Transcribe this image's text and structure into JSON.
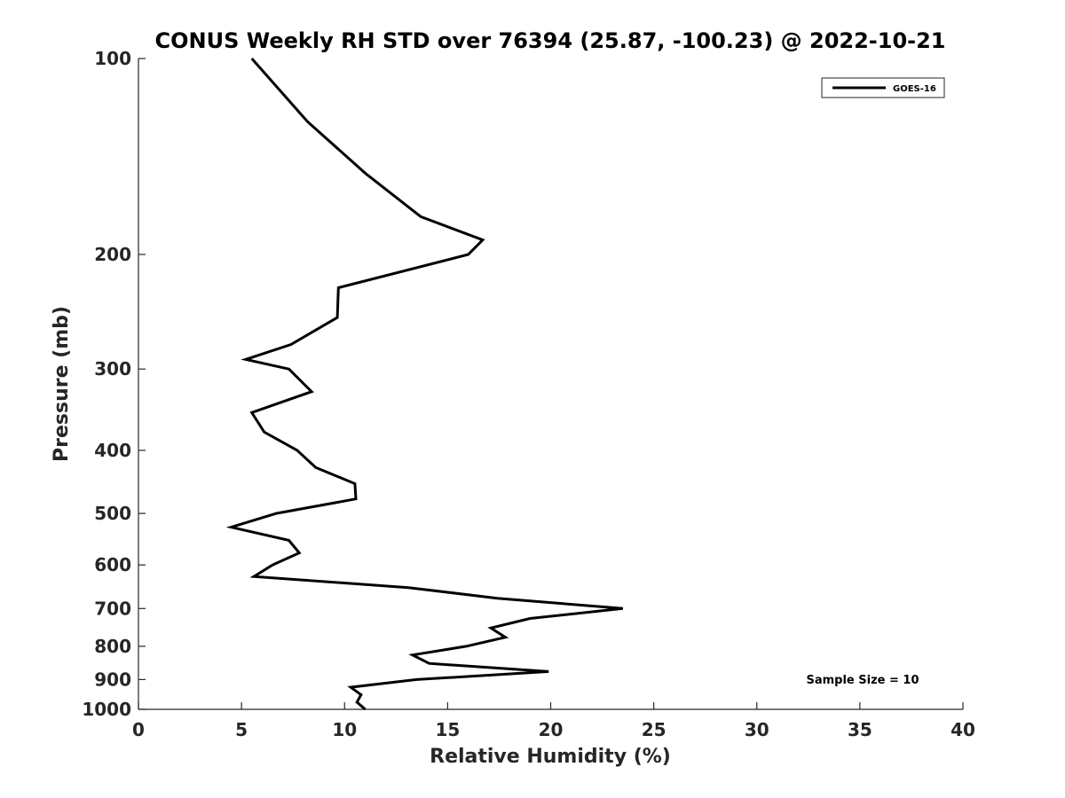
{
  "chart_data": {
    "type": "line",
    "title": "CONUS Weekly RH STD over 76394 (25.87, -100.23) @ 2022-10-21",
    "xlabel": "Relative Humidity (%)",
    "ylabel": "Pressure (mb)",
    "xlim": [
      0,
      40
    ],
    "ylim": [
      100,
      1000
    ],
    "yscale": "log",
    "y_reversed": true,
    "grid": false,
    "legend_position": "top-right",
    "x_ticks": [
      0,
      5,
      10,
      15,
      20,
      25,
      30,
      35,
      40
    ],
    "x_tick_labels": [
      "0",
      "5",
      "10",
      "15",
      "20",
      "25",
      "30",
      "35",
      "40"
    ],
    "y_ticks": [
      100,
      200,
      300,
      400,
      500,
      600,
      700,
      800,
      900,
      1000
    ],
    "y_tick_labels": [
      "100",
      "200",
      "300",
      "400",
      "500",
      "600",
      "700",
      "800",
      "900",
      "1000"
    ],
    "series": [
      {
        "name": "GOES-16",
        "color": "#000000",
        "points": [
          {
            "p": 100,
            "x": 5.5
          },
          {
            "p": 125,
            "x": 8.2
          },
          {
            "p": 150,
            "x": 11.0
          },
          {
            "p": 175,
            "x": 13.7
          },
          {
            "p": 190,
            "x": 16.7
          },
          {
            "p": 200,
            "x": 16.0
          },
          {
            "p": 225,
            "x": 9.7
          },
          {
            "p": 250,
            "x": 9.65
          },
          {
            "p": 275,
            "x": 7.4
          },
          {
            "p": 290,
            "x": 5.2
          },
          {
            "p": 300,
            "x": 7.3
          },
          {
            "p": 325,
            "x": 8.4
          },
          {
            "p": 350,
            "x": 5.5
          },
          {
            "p": 375,
            "x": 6.1
          },
          {
            "p": 400,
            "x": 7.7
          },
          {
            "p": 425,
            "x": 8.6
          },
          {
            "p": 450,
            "x": 10.5
          },
          {
            "p": 475,
            "x": 10.55
          },
          {
            "p": 500,
            "x": 6.7
          },
          {
            "p": 525,
            "x": 4.5
          },
          {
            "p": 550,
            "x": 7.3
          },
          {
            "p": 575,
            "x": 7.8
          },
          {
            "p": 600,
            "x": 6.5
          },
          {
            "p": 625,
            "x": 5.6
          },
          {
            "p": 650,
            "x": 13.1
          },
          {
            "p": 675,
            "x": 17.4
          },
          {
            "p": 700,
            "x": 23.5
          },
          {
            "p": 725,
            "x": 19.0
          },
          {
            "p": 750,
            "x": 17.1
          },
          {
            "p": 775,
            "x": 17.8
          },
          {
            "p": 800,
            "x": 15.9
          },
          {
            "p": 825,
            "x": 13.3
          },
          {
            "p": 850,
            "x": 14.1
          },
          {
            "p": 875,
            "x": 19.9
          },
          {
            "p": 900,
            "x": 13.5
          },
          {
            "p": 925,
            "x": 10.3
          },
          {
            "p": 950,
            "x": 10.8
          },
          {
            "p": 975,
            "x": 10.6
          },
          {
            "p": 1000,
            "x": 11.0
          }
        ]
      }
    ],
    "annotation": "Sample Size = 10"
  }
}
